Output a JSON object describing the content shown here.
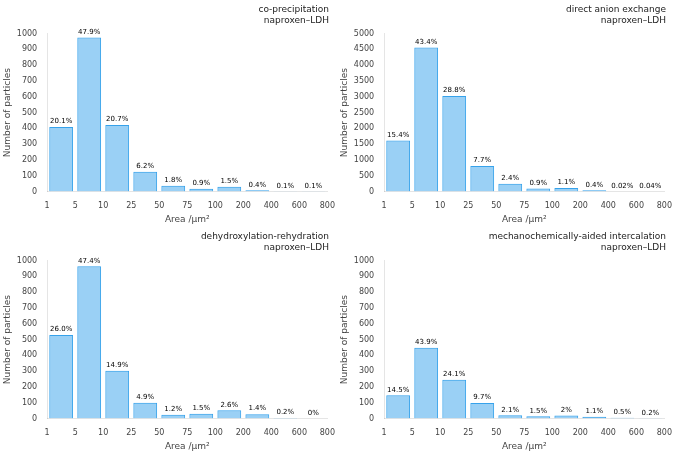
{
  "chart_data": [
    {
      "type": "histogram",
      "title": "co-precipitation\nnaproxen–LDH",
      "x_label": "Area /μm²",
      "y_label": "Number of particles",
      "bins": [
        1,
        5,
        10,
        25,
        50,
        75,
        100,
        200,
        400,
        600,
        800
      ],
      "values": [
        409,
        975,
        421,
        126,
        37,
        18,
        31,
        8,
        2,
        2
      ],
      "bar_labels": [
        "20.1%",
        "47.9%",
        "20.7%",
        "6.2%",
        "1.8%",
        "0.9%",
        "1.5%",
        "0.4%",
        "0.1%",
        "0.1%"
      ],
      "ylim": [
        0,
        1000
      ],
      "yticks": [
        0,
        100,
        200,
        300,
        400,
        500,
        600,
        700,
        800,
        900,
        1000
      ],
      "grid": false
    },
    {
      "type": "histogram",
      "title": "direct anion exchange\nnaproxen–LDH",
      "x_label": "Area /μm²",
      "y_label": "Number of particles",
      "bins": [
        1,
        5,
        10,
        25,
        50,
        75,
        100,
        200,
        400,
        600,
        800
      ],
      "values": [
        1617,
        4559,
        3025,
        809,
        252,
        95,
        116,
        42,
        2,
        4
      ],
      "bar_labels": [
        "15.4%",
        "43.4%",
        "28.8%",
        "7.7%",
        "2.4%",
        "0.9%",
        "1.1%",
        "0.4%",
        "0.02%",
        "0.04%"
      ],
      "ylim": [
        0,
        5000
      ],
      "yticks": [
        0,
        500,
        1000,
        1500,
        2000,
        2500,
        3000,
        3500,
        4000,
        4500,
        5000
      ],
      "grid": false
    },
    {
      "type": "histogram",
      "title": "dehydroxylation-rehydration\nnaproxen–LDH",
      "x_label": "Area /μm²",
      "y_label": "Number of particles",
      "bins": [
        1,
        5,
        10,
        25,
        50,
        75,
        100,
        200,
        400,
        600,
        800
      ],
      "values": [
        529,
        964,
        303,
        100,
        24,
        31,
        53,
        28,
        4,
        0
      ],
      "bar_labels": [
        "26.0%",
        "47.4%",
        "14.9%",
        "4.9%",
        "1.2%",
        "1.5%",
        "2.6%",
        "1.4%",
        "0.2%",
        "0%"
      ],
      "ylim": [
        0,
        1000
      ],
      "yticks": [
        0,
        100,
        200,
        300,
        400,
        500,
        600,
        700,
        800,
        900,
        1000
      ],
      "grid": false
    },
    {
      "type": "histogram",
      "title": "mechanochemically-aided intercalation\nnaproxen–LDH",
      "x_label": "Area /μm²",
      "y_label": "Number of particles",
      "bins": [
        1,
        5,
        10,
        25,
        50,
        75,
        100,
        200,
        400,
        600,
        800
      ],
      "values": [
        148,
        449,
        246,
        99,
        21,
        15,
        20,
        11,
        5,
        2
      ],
      "bar_labels": [
        "14.5%",
        "43.9%",
        "24.1%",
        "9.7%",
        "2.1%",
        "1.5%",
        "2%",
        "1.1%",
        "0.5%",
        "0.2%"
      ],
      "ylim": [
        0,
        1000
      ],
      "yticks": [
        0,
        100,
        200,
        300,
        400,
        500,
        600,
        700,
        800,
        900,
        1000
      ],
      "grid": false
    }
  ]
}
